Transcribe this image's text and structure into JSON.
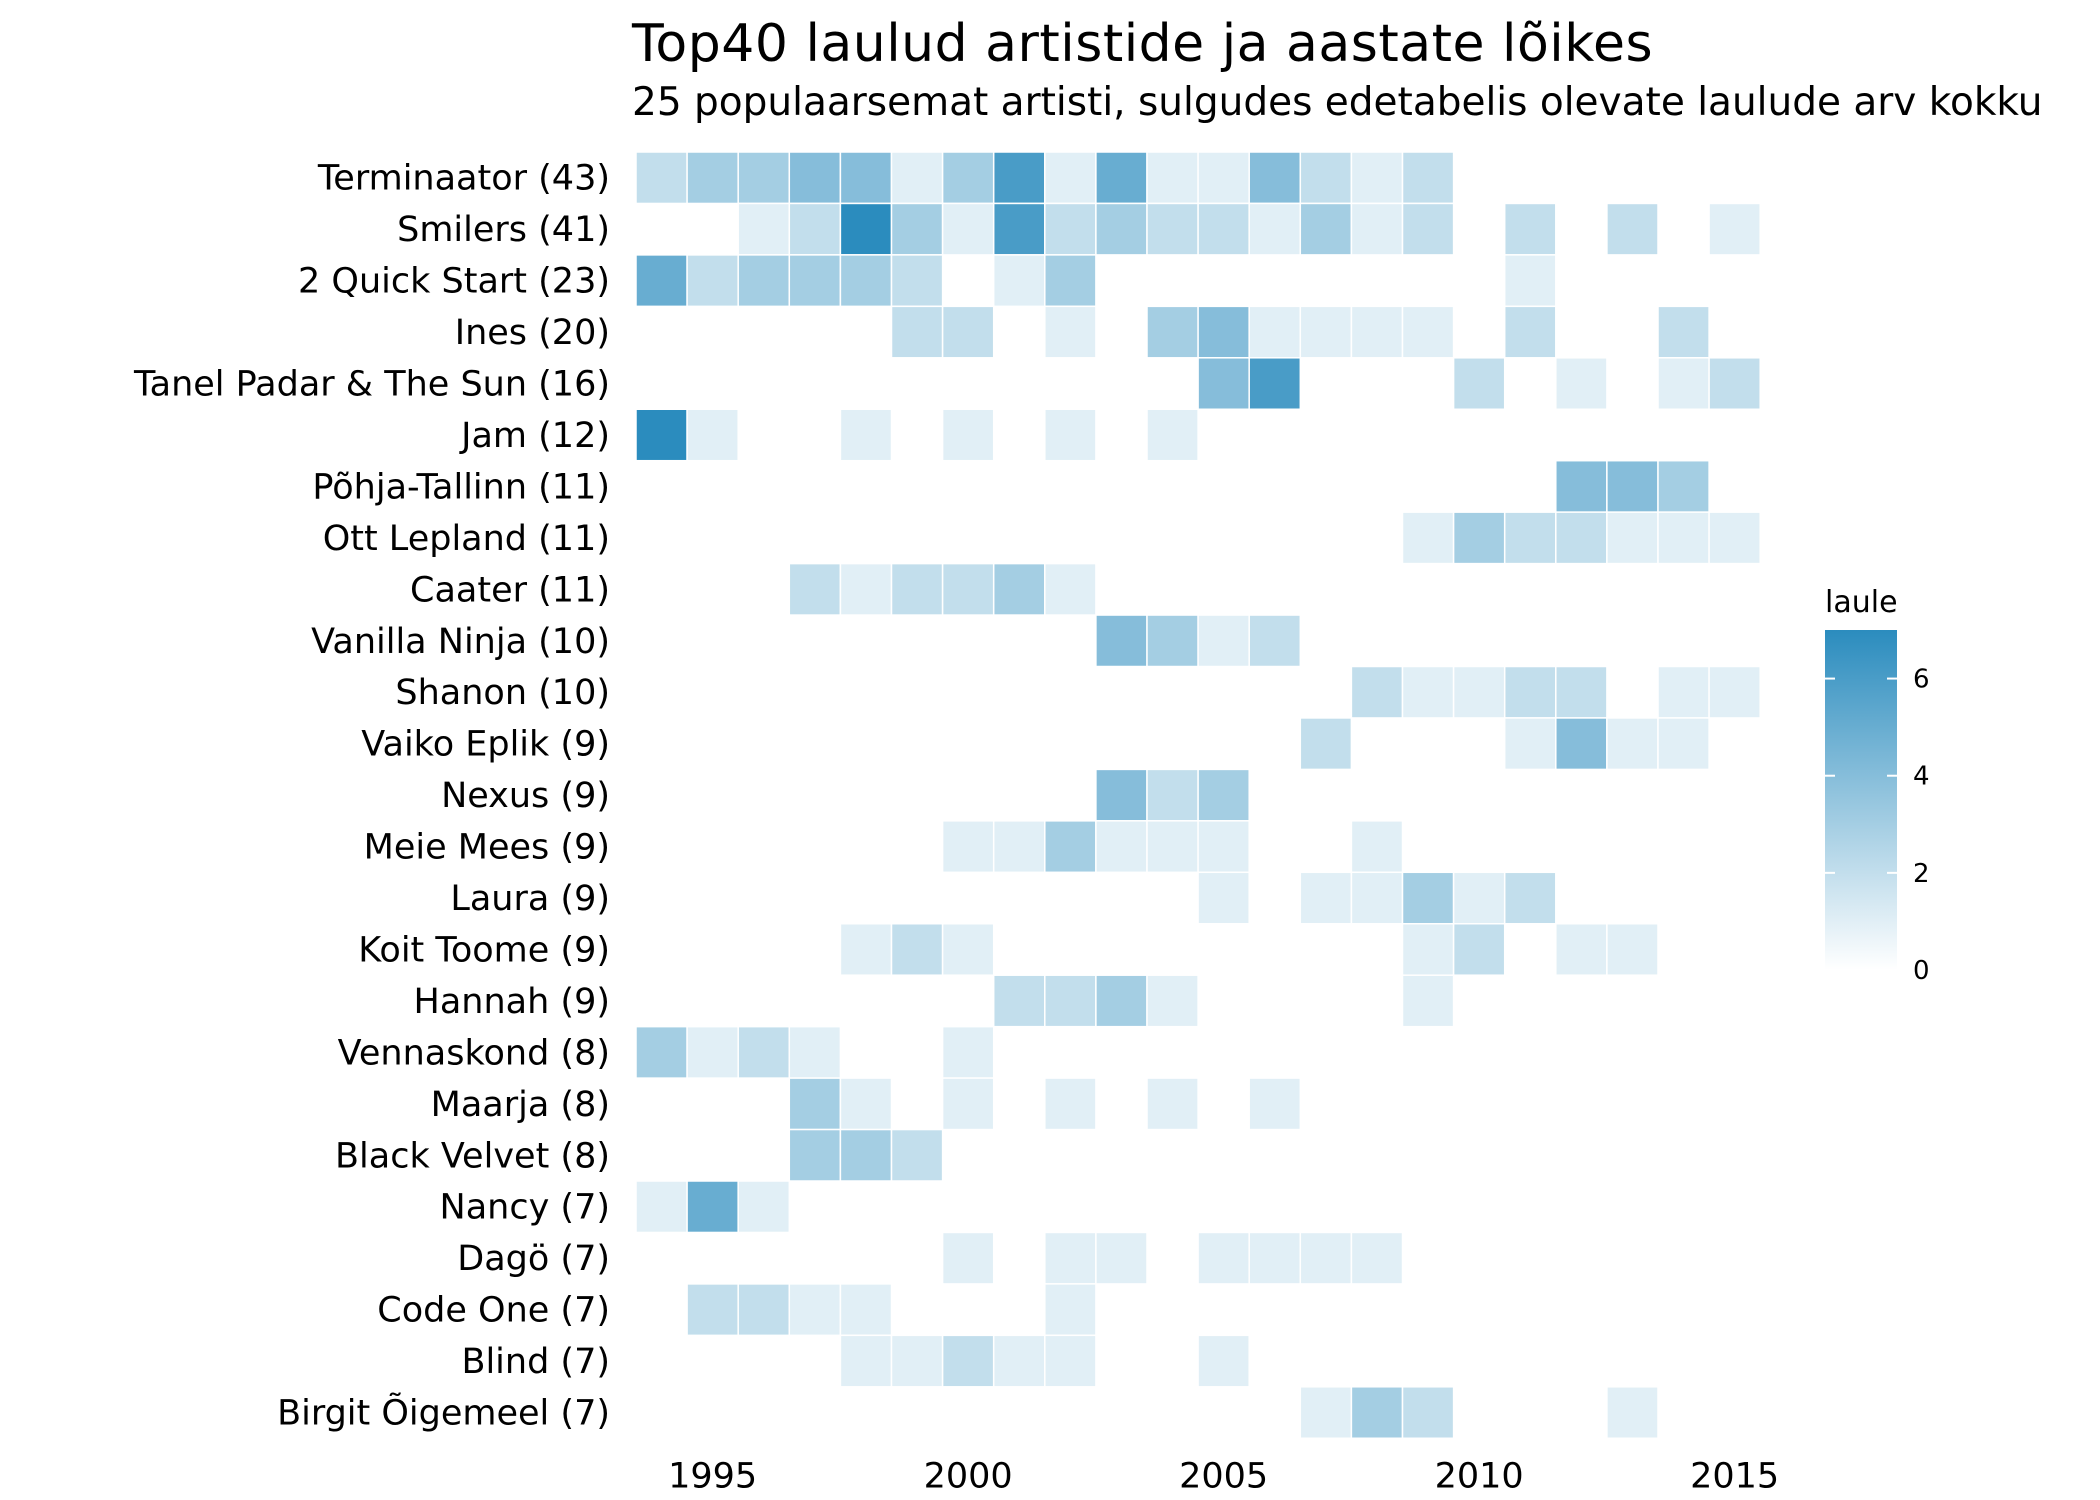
{
  "chart_data": {
    "type": "heatmap",
    "title": "Top40 laulud artistide ja aastate lõikes",
    "subtitle": "25 populaarsemat artisti, sulgudes edetabelis olevate laulude arv kokku",
    "xlabel": "",
    "ylabel": "",
    "x_tick_labels": [
      "1995",
      "2000",
      "2005",
      "2010",
      "2015"
    ],
    "xlim": [
      1994,
      2016
    ],
    "legend": {
      "title": "laule",
      "position": "right",
      "ticks": [
        "0",
        "2",
        "4",
        "6"
      ],
      "range": [
        0,
        7
      ],
      "color_low": "#ffffff",
      "color_high": "#2b8cbe"
    },
    "grid": false,
    "artists": [
      {
        "label": "Terminaator (43)",
        "cells": {
          "1994": 2,
          "1995": 3,
          "1996": 3,
          "1997": 4,
          "1998": 4,
          "1999": 1,
          "2000": 3,
          "2001": 6,
          "2002": 1,
          "2003": 5,
          "2004": 1,
          "2005": 1,
          "2006": 4,
          "2007": 2,
          "2008": 1,
          "2009": 2
        }
      },
      {
        "label": "Smilers (41)",
        "cells": {
          "1996": 1,
          "1997": 2,
          "1998": 7,
          "1999": 3,
          "2000": 1,
          "2001": 6,
          "2002": 2,
          "2003": 3,
          "2004": 2,
          "2005": 2,
          "2006": 1,
          "2007": 3,
          "2008": 1,
          "2009": 2,
          "2011": 2,
          "2013": 2,
          "2015": 1
        }
      },
      {
        "label": "2 Quick Start (23)",
        "cells": {
          "1994": 5,
          "1995": 2,
          "1996": 3,
          "1997": 3,
          "1998": 3,
          "1999": 2,
          "2001": 1,
          "2002": 3,
          "2011": 1
        }
      },
      {
        "label": "Ines (20)",
        "cells": {
          "1999": 2,
          "2000": 2,
          "2002": 1,
          "2004": 3,
          "2005": 4,
          "2006": 1,
          "2007": 1,
          "2008": 1,
          "2009": 1,
          "2011": 2,
          "2014": 2
        }
      },
      {
        "label": "Tanel Padar & The Sun (16)",
        "cells": {
          "2005": 4,
          "2006": 6,
          "2010": 2,
          "2012": 1,
          "2014": 1,
          "2015": 2
        }
      },
      {
        "label": "Jam (12)",
        "cells": {
          "1994": 7,
          "1995": 1,
          "1998": 1,
          "2000": 1,
          "2002": 1,
          "2004": 1
        }
      },
      {
        "label": "Põhja-Tallinn (11)",
        "cells": {
          "2012": 4,
          "2013": 4,
          "2014": 3
        }
      },
      {
        "label": "Ott Lepland (11)",
        "cells": {
          "2009": 1,
          "2010": 3,
          "2011": 2,
          "2012": 2,
          "2013": 1,
          "2014": 1,
          "2015": 1
        }
      },
      {
        "label": "Caater (11)",
        "cells": {
          "1997": 2,
          "1998": 1,
          "1999": 2,
          "2000": 2,
          "2001": 3,
          "2002": 1
        }
      },
      {
        "label": "Vanilla Ninja (10)",
        "cells": {
          "2003": 4,
          "2004": 3,
          "2005": 1,
          "2006": 2
        }
      },
      {
        "label": "Shanon (10)",
        "cells": {
          "2008": 2,
          "2009": 1,
          "2010": 1,
          "2011": 2,
          "2012": 2,
          "2014": 1,
          "2015": 1
        }
      },
      {
        "label": "Vaiko Eplik (9)",
        "cells": {
          "2007": 2,
          "2011": 1,
          "2012": 4,
          "2013": 1,
          "2014": 1
        }
      },
      {
        "label": "Nexus (9)",
        "cells": {
          "2003": 4,
          "2004": 2,
          "2005": 3
        }
      },
      {
        "label": "Meie Mees (9)",
        "cells": {
          "2000": 1,
          "2001": 1,
          "2002": 3,
          "2003": 1,
          "2004": 1,
          "2005": 1,
          "2008": 1
        }
      },
      {
        "label": "Laura (9)",
        "cells": {
          "2005": 1,
          "2007": 1,
          "2008": 1,
          "2009": 3,
          "2010": 1,
          "2011": 2
        }
      },
      {
        "label": "Koit Toome (9)",
        "cells": {
          "1998": 1,
          "1999": 2,
          "2000": 1,
          "2009": 1,
          "2010": 2,
          "2012": 1,
          "2013": 1
        }
      },
      {
        "label": "Hannah (9)",
        "cells": {
          "2001": 2,
          "2002": 2,
          "2003": 3,
          "2004": 1,
          "2009": 1
        }
      },
      {
        "label": "Vennaskond (8)",
        "cells": {
          "1994": 3,
          "1995": 1,
          "1996": 2,
          "1997": 1,
          "2000": 1
        }
      },
      {
        "label": "Maarja (8)",
        "cells": {
          "1997": 3,
          "1998": 1,
          "2000": 1,
          "2002": 1,
          "2004": 1,
          "2006": 1
        }
      },
      {
        "label": "Black Velvet (8)",
        "cells": {
          "1997": 3,
          "1998": 3,
          "1999": 2
        }
      },
      {
        "label": "Nancy (7)",
        "cells": {
          "1994": 1,
          "1995": 5,
          "1996": 1
        }
      },
      {
        "label": "Dagö (7)",
        "cells": {
          "2000": 1,
          "2002": 1,
          "2003": 1,
          "2005": 1,
          "2006": 1,
          "2007": 1,
          "2008": 1
        }
      },
      {
        "label": "Code One (7)",
        "cells": {
          "1995": 2,
          "1996": 2,
          "1997": 1,
          "1998": 1,
          "2002": 1
        }
      },
      {
        "label": "Blind (7)",
        "cells": {
          "1998": 1,
          "1999": 1,
          "2000": 2,
          "2001": 1,
          "2002": 1,
          "2005": 1
        }
      },
      {
        "label": "Birgit Õigemeel (7)",
        "cells": {
          "2007": 1,
          "2008": 3,
          "2009": 2,
          "2013": 1
        }
      }
    ]
  }
}
